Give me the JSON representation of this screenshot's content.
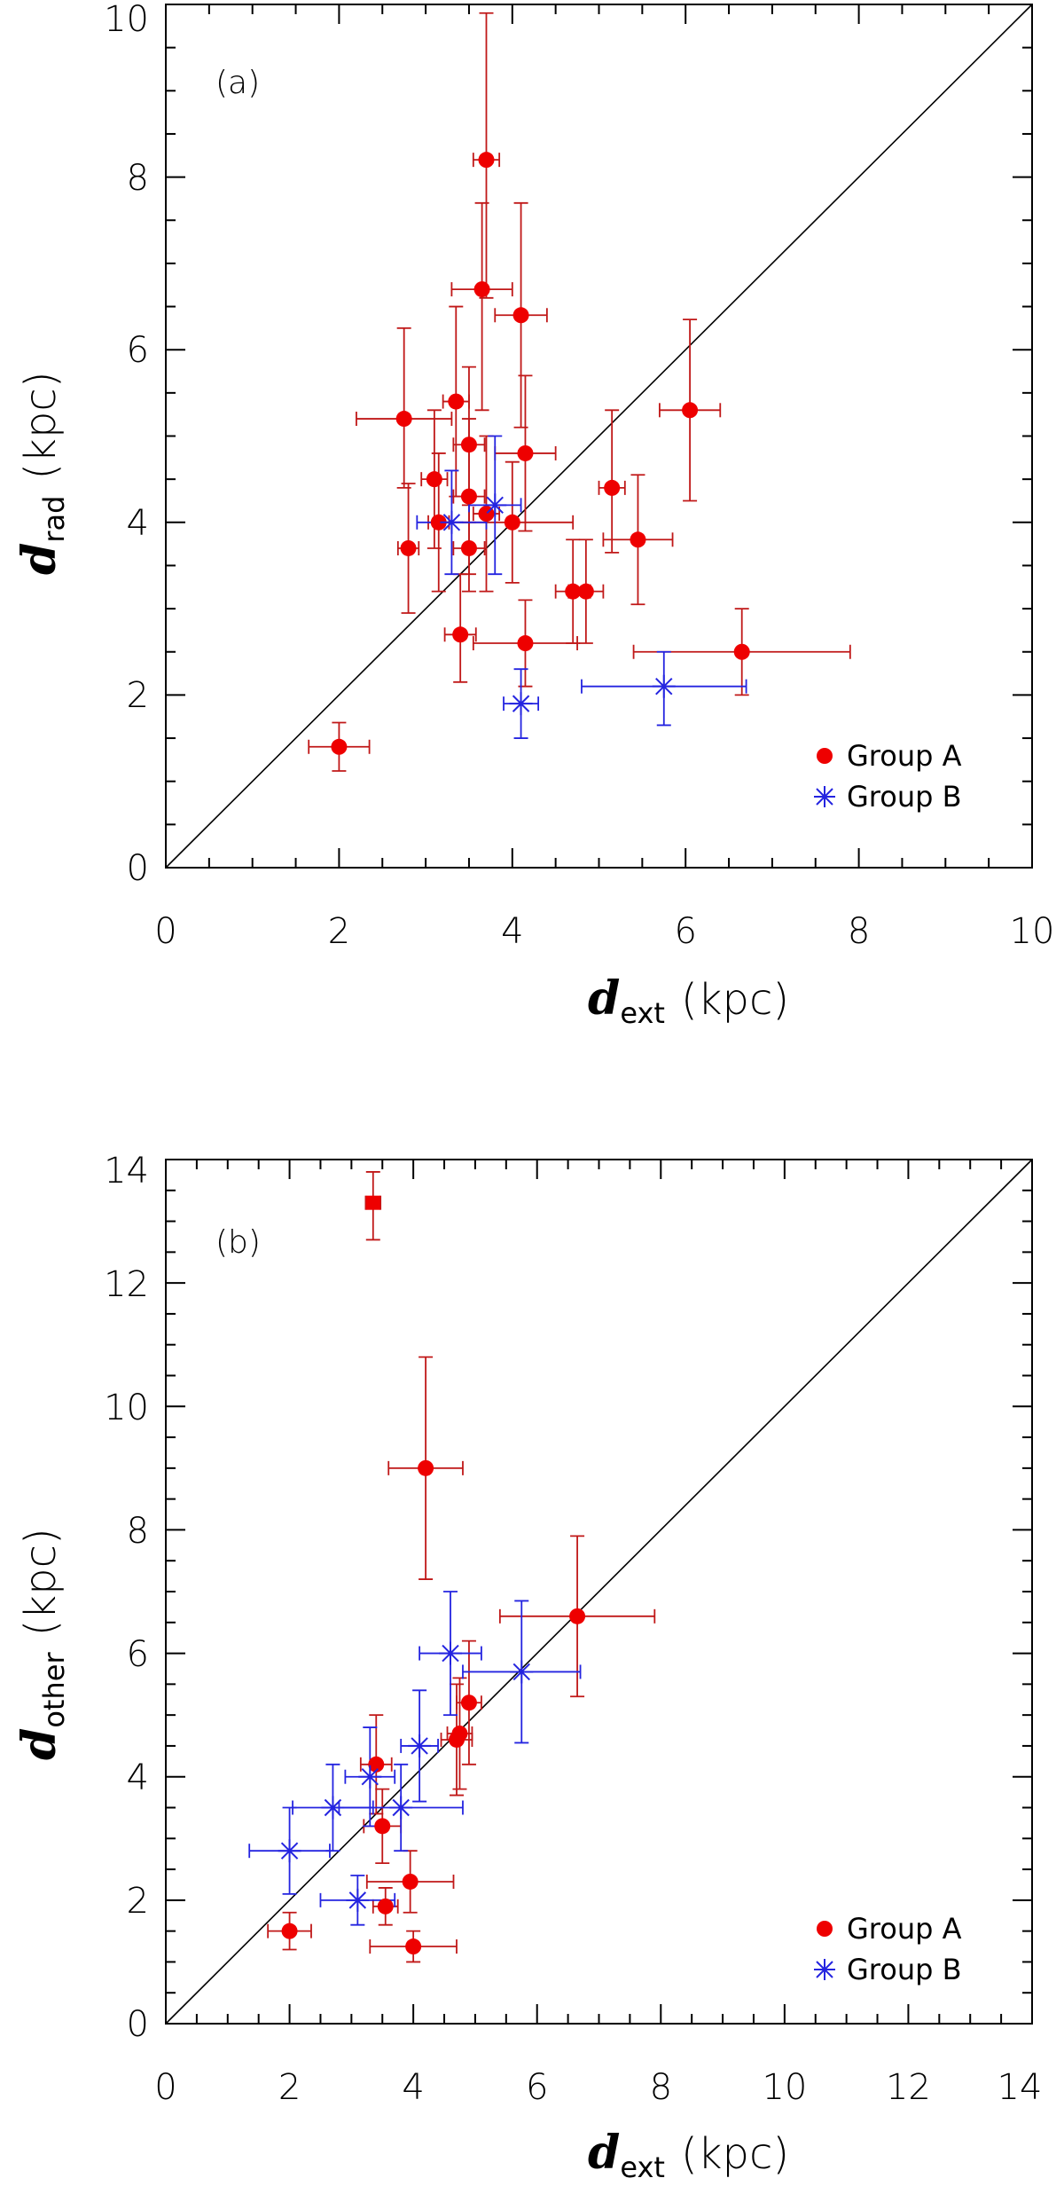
{
  "colors": {
    "group_a": "#ee0000",
    "group_a_err": "#c01818",
    "group_b": "#2424e0",
    "axis": "#000000"
  },
  "chart_data": [
    {
      "type": "scatter",
      "panel_label": "(a)",
      "xlabel": {
        "var": "d",
        "sub": "ext",
        "unit": "(kpc)"
      },
      "ylabel": {
        "var": "d",
        "sub": "rad",
        "unit": "(kpc)"
      },
      "xlim": [
        0,
        10
      ],
      "ylim": [
        0,
        10
      ],
      "xticks": [
        "0",
        "2",
        "4",
        "6",
        "8",
        "10"
      ],
      "yticks": [
        "0",
        "2",
        "4",
        "6",
        "8",
        "10"
      ],
      "diagonal": true,
      "legend": {
        "position": "bottom-right",
        "entries": [
          "Group A",
          "Group B"
        ]
      },
      "series": [
        {
          "name": "Group A",
          "marker": "circle",
          "points": [
            {
              "x": 2.0,
              "y": 1.4,
              "xerr": 0.35,
              "yerr_lo": 0.28,
              "yerr_hi": 0.28
            },
            {
              "x": 2.75,
              "y": 5.2,
              "xerr": 0.55,
              "yerr_lo": 0.8,
              "yerr_hi": 1.05
            },
            {
              "x": 2.8,
              "y": 3.7,
              "xerr": 0.12,
              "yerr_lo": 0.75,
              "yerr_hi": 0.75
            },
            {
              "x": 3.1,
              "y": 4.5,
              "xerr": 0.15,
              "yerr_lo": 0.8,
              "yerr_hi": 0.8
            },
            {
              "x": 3.15,
              "y": 4.0,
              "xerr": 0.12,
              "yerr_lo": 0.8,
              "yerr_hi": 0.8
            },
            {
              "x": 3.35,
              "y": 5.4,
              "xerr": 0.15,
              "yerr_lo": 1.1,
              "yerr_hi": 1.1
            },
            {
              "x": 3.4,
              "y": 2.7,
              "xerr": 0.18,
              "yerr_lo": 0.55,
              "yerr_hi": 0.7
            },
            {
              "x": 3.5,
              "y": 4.9,
              "xerr": 0.18,
              "yerr_lo": 0.9,
              "yerr_hi": 0.9
            },
            {
              "x": 3.5,
              "y": 4.3,
              "xerr": 0.18,
              "yerr_lo": 0.9,
              "yerr_hi": 0.9
            },
            {
              "x": 3.5,
              "y": 3.7,
              "xerr": 0.18,
              "yerr_lo": 0.5,
              "yerr_hi": 0.5
            },
            {
              "x": 3.65,
              "y": 6.7,
              "xerr": 0.35,
              "yerr_lo": 1.4,
              "yerr_hi": 1.0
            },
            {
              "x": 3.7,
              "y": 8.2,
              "xerr": 0.15,
              "yerr_lo": 1.6,
              "yerr_hi": 1.7
            },
            {
              "x": 3.7,
              "y": 4.1,
              "xerr": 0.15,
              "yerr_lo": 0.9,
              "yerr_hi": 0.9
            },
            {
              "x": 4.0,
              "y": 4.0,
              "xerr": 0.7,
              "yerr_lo": 0.7,
              "yerr_hi": 0.7
            },
            {
              "x": 4.1,
              "y": 6.4,
              "xerr": 0.3,
              "yerr_lo": 1.3,
              "yerr_hi": 1.3
            },
            {
              "x": 4.15,
              "y": 4.8,
              "xerr": 0.35,
              "yerr_lo": 0.9,
              "yerr_hi": 0.9
            },
            {
              "x": 4.15,
              "y": 2.6,
              "xerr": 0.6,
              "yerr_lo": 0.5,
              "yerr_hi": 0.5
            },
            {
              "x": 4.7,
              "y": 3.2,
              "xerr": 0.2,
              "yerr_lo": 0.6,
              "yerr_hi": 0.6
            },
            {
              "x": 4.85,
              "y": 3.2,
              "xerr": 0.2,
              "yerr_lo": 0.6,
              "yerr_hi": 0.6
            },
            {
              "x": 5.15,
              "y": 4.4,
              "xerr": 0.15,
              "yerr_lo": 0.75,
              "yerr_hi": 0.9
            },
            {
              "x": 5.45,
              "y": 3.8,
              "xerr": 0.4,
              "yerr_lo": 0.75,
              "yerr_hi": 0.75
            },
            {
              "x": 6.05,
              "y": 5.3,
              "xerr": 0.35,
              "yerr_lo": 1.05,
              "yerr_hi": 1.05
            },
            {
              "x": 6.65,
              "y": 2.5,
              "xerr": 1.25,
              "yerr_lo": 0.5,
              "yerr_hi": 0.5
            }
          ]
        },
        {
          "name": "Group B",
          "marker": "asterisk",
          "points": [
            {
              "x": 3.3,
              "y": 4.0,
              "xerr": 0.4,
              "yerr_lo": 0.6,
              "yerr_hi": 0.6
            },
            {
              "x": 3.8,
              "y": 4.2,
              "xerr": 0.3,
              "yerr_lo": 0.8,
              "yerr_hi": 0.8
            },
            {
              "x": 4.1,
              "y": 1.9,
              "xerr": 0.2,
              "yerr_lo": 0.4,
              "yerr_hi": 0.4
            },
            {
              "x": 5.75,
              "y": 2.1,
              "xerr": 0.95,
              "yerr_lo": 0.45,
              "yerr_hi": 0.4
            }
          ]
        }
      ]
    },
    {
      "type": "scatter",
      "panel_label": "(b)",
      "xlabel": {
        "var": "d",
        "sub": "ext",
        "unit": "(kpc)"
      },
      "ylabel": {
        "var": "d",
        "sub": "other",
        "unit": "(kpc)"
      },
      "xlim": [
        0,
        14
      ],
      "ylim": [
        0,
        14
      ],
      "xticks": [
        "0",
        "2",
        "4",
        "6",
        "8",
        "10",
        "12",
        "14"
      ],
      "yticks": [
        "0",
        "2",
        "4",
        "6",
        "8",
        "10",
        "12",
        "14"
      ],
      "diagonal": true,
      "legend": {
        "position": "bottom-right",
        "entries": [
          "Group A",
          "Group B"
        ]
      },
      "series": [
        {
          "name": "Group A",
          "marker": "circle",
          "points": [
            {
              "x": 2.0,
              "y": 1.5,
              "xerr": 0.35,
              "yerr_lo": 0.3,
              "yerr_hi": 0.3
            },
            {
              "x": 3.35,
              "y": 13.3,
              "xerr": 0.12,
              "yerr_lo": 0.6,
              "yerr_hi": 0.5,
              "marker": "square"
            },
            {
              "x": 3.4,
              "y": 4.2,
              "xerr": 0.25,
              "yerr_lo": 0.8,
              "yerr_hi": 0.8
            },
            {
              "x": 3.5,
              "y": 3.2,
              "xerr": 0.3,
              "yerr_lo": 0.6,
              "yerr_hi": 0.6
            },
            {
              "x": 3.55,
              "y": 1.9,
              "xerr": 0.2,
              "yerr_lo": 0.3,
              "yerr_hi": 0.3
            },
            {
              "x": 3.95,
              "y": 2.3,
              "xerr": 0.7,
              "yerr_lo": 0.5,
              "yerr_hi": 0.5
            },
            {
              "x": 4.0,
              "y": 1.25,
              "xerr": 0.7,
              "yerr_lo": 0.25,
              "yerr_hi": 0.25
            },
            {
              "x": 4.2,
              "y": 9.0,
              "xerr": 0.6,
              "yerr_lo": 1.8,
              "yerr_hi": 1.8
            },
            {
              "x": 4.7,
              "y": 4.6,
              "xerr": 0.25,
              "yerr_lo": 0.9,
              "yerr_hi": 0.9
            },
            {
              "x": 4.75,
              "y": 4.7,
              "xerr": 0.2,
              "yerr_lo": 0.9,
              "yerr_hi": 0.9
            },
            {
              "x": 4.9,
              "y": 5.2,
              "xerr": 0.2,
              "yerr_lo": 1.0,
              "yerr_hi": 1.0
            },
            {
              "x": 6.65,
              "y": 6.6,
              "xerr": 1.25,
              "yerr_lo": 1.3,
              "yerr_hi": 1.3
            }
          ]
        },
        {
          "name": "Group B",
          "marker": "asterisk",
          "points": [
            {
              "x": 2.0,
              "y": 2.8,
              "xerr": 0.65,
              "yerr_lo": 0.7,
              "yerr_hi": 0.7
            },
            {
              "x": 2.7,
              "y": 3.5,
              "xerr": 0.65,
              "yerr_lo": 0.7,
              "yerr_hi": 0.7
            },
            {
              "x": 3.1,
              "y": 2.0,
              "xerr": 0.6,
              "yerr_lo": 0.4,
              "yerr_hi": 0.4
            },
            {
              "x": 3.3,
              "y": 4.0,
              "xerr": 0.4,
              "yerr_lo": 0.8,
              "yerr_hi": 0.8
            },
            {
              "x": 3.8,
              "y": 3.5,
              "xerr": 1.0,
              "yerr_lo": 0.7,
              "yerr_hi": 0.7
            },
            {
              "x": 4.1,
              "y": 4.5,
              "xerr": 0.3,
              "yerr_lo": 0.9,
              "yerr_hi": 0.9
            },
            {
              "x": 4.6,
              "y": 6.0,
              "xerr": 0.5,
              "yerr_lo": 1.0,
              "yerr_hi": 1.0
            },
            {
              "x": 5.75,
              "y": 5.7,
              "xerr": 0.95,
              "yerr_lo": 1.15,
              "yerr_hi": 1.15
            }
          ]
        }
      ]
    }
  ]
}
